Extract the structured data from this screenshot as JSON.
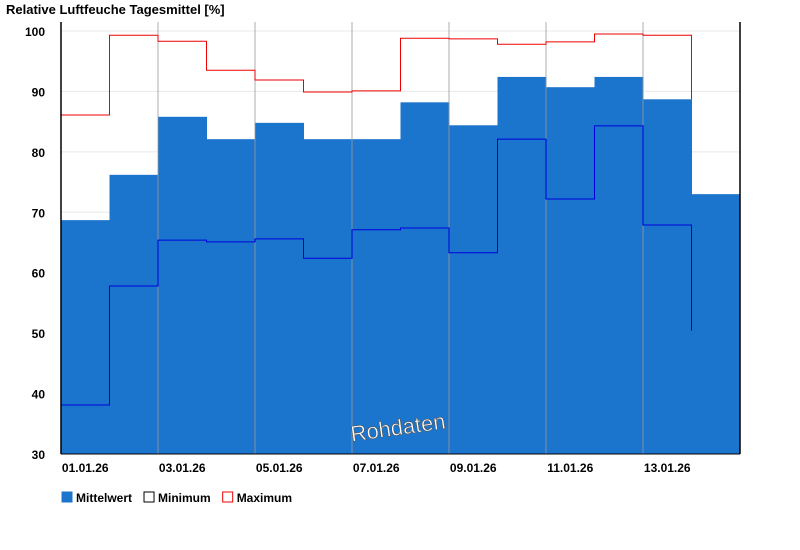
{
  "chart_data": {
    "type": "bar",
    "title": "Relative Luftfeuche Tagesmittel [%]",
    "xlabel": "",
    "ylabel": "",
    "ylim": [
      30,
      101.5
    ],
    "yticks": [
      30,
      40,
      50,
      60,
      70,
      80,
      90,
      100
    ],
    "grid": true,
    "categories": [
      "01.01.26",
      "02.01.26",
      "03.01.26",
      "04.01.26",
      "05.01.26",
      "06.01.26",
      "07.01.26",
      "08.01.26",
      "09.01.26",
      "10.01.26",
      "11.01.26",
      "12.01.26",
      "13.01.26",
      "14.01.26"
    ],
    "xtick_labels": [
      "01.01.26",
      "03.01.26",
      "05.01.26",
      "07.01.26",
      "09.01.26",
      "11.01.26",
      "13.01.26"
    ],
    "series": [
      {
        "name": "Mittelwert",
        "kind": "bar",
        "color": "#1b75cd",
        "values": [
          68.7,
          76.2,
          85.8,
          82.1,
          84.8,
          82.1,
          82.1,
          88.2,
          84.4,
          92.4,
          90.7,
          92.4,
          88.7,
          73.0
        ]
      },
      {
        "name": "Minimum",
        "kind": "step",
        "color": "#0000dd",
        "values": [
          38.1,
          57.8,
          65.4,
          65.1,
          65.6,
          62.4,
          67.1,
          67.4,
          63.3,
          82.1,
          72.2,
          84.3,
          67.9,
          null
        ],
        "tail": 50.4
      },
      {
        "name": "Maximum",
        "kind": "step",
        "color": "#ee0000",
        "values": [
          86.1,
          99.3,
          98.3,
          93.5,
          91.9,
          89.9,
          90.1,
          98.8,
          98.7,
          97.8,
          98.2,
          99.5,
          99.3,
          null
        ],
        "tail": 88.7
      }
    ],
    "legend": {
      "placement": "bottom-left",
      "entries": [
        "Mittelwert",
        "Minimum",
        "Maximum"
      ]
    },
    "annotation": "Rohdaten"
  }
}
